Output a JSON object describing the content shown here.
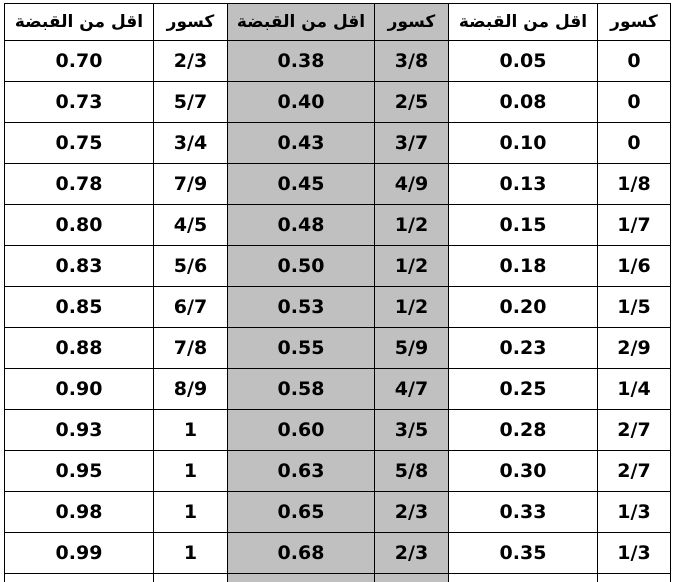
{
  "header": {
    "fraction_label": "كسور",
    "decimal_label": "اقل من القبضة"
  },
  "colors": {
    "shaded_column": "#c0c0c0",
    "border": "#000000"
  },
  "rows": [
    {
      "g1_frac": "0",
      "g1_dec": "0.05",
      "g2_frac": "3/8",
      "g2_dec": "0.38",
      "g3_frac": "2/3",
      "g3_dec": "0.70"
    },
    {
      "g1_frac": "0",
      "g1_dec": "0.08",
      "g2_frac": "2/5",
      "g2_dec": "0.40",
      "g3_frac": "5/7",
      "g3_dec": "0.73"
    },
    {
      "g1_frac": "0",
      "g1_dec": "0.10",
      "g2_frac": "3/7",
      "g2_dec": "0.43",
      "g3_frac": "3/4",
      "g3_dec": "0.75"
    },
    {
      "g1_frac": "1/8",
      "g1_dec": "0.13",
      "g2_frac": "4/9",
      "g2_dec": "0.45",
      "g3_frac": "7/9",
      "g3_dec": "0.78"
    },
    {
      "g1_frac": "1/7",
      "g1_dec": "0.15",
      "g2_frac": "1/2",
      "g2_dec": "0.48",
      "g3_frac": "4/5",
      "g3_dec": "0.80"
    },
    {
      "g1_frac": "1/6",
      "g1_dec": "0.18",
      "g2_frac": "1/2",
      "g2_dec": "0.50",
      "g3_frac": "5/6",
      "g3_dec": "0.83"
    },
    {
      "g1_frac": "1/5",
      "g1_dec": "0.20",
      "g2_frac": "1/2",
      "g2_dec": "0.53",
      "g3_frac": "6/7",
      "g3_dec": "0.85"
    },
    {
      "g1_frac": "2/9",
      "g1_dec": "0.23",
      "g2_frac": "5/9",
      "g2_dec": "0.55",
      "g3_frac": "7/8",
      "g3_dec": "0.88"
    },
    {
      "g1_frac": "1/4",
      "g1_dec": "0.25",
      "g2_frac": "4/7",
      "g2_dec": "0.58",
      "g3_frac": "8/9",
      "g3_dec": "0.90"
    },
    {
      "g1_frac": "2/7",
      "g1_dec": "0.28",
      "g2_frac": "3/5",
      "g2_dec": "0.60",
      "g3_frac": "1",
      "g3_dec": "0.93"
    },
    {
      "g1_frac": "2/7",
      "g1_dec": "0.30",
      "g2_frac": "5/8",
      "g2_dec": "0.63",
      "g3_frac": "1",
      "g3_dec": "0.95"
    },
    {
      "g1_frac": "1/3",
      "g1_dec": "0.33",
      "g2_frac": "2/3",
      "g2_dec": "0.65",
      "g3_frac": "1",
      "g3_dec": "0.98"
    },
    {
      "g1_frac": "1/3",
      "g1_dec": "0.35",
      "g2_frac": "2/3",
      "g2_dec": "0.68",
      "g3_frac": "1",
      "g3_dec": "0.99"
    }
  ]
}
